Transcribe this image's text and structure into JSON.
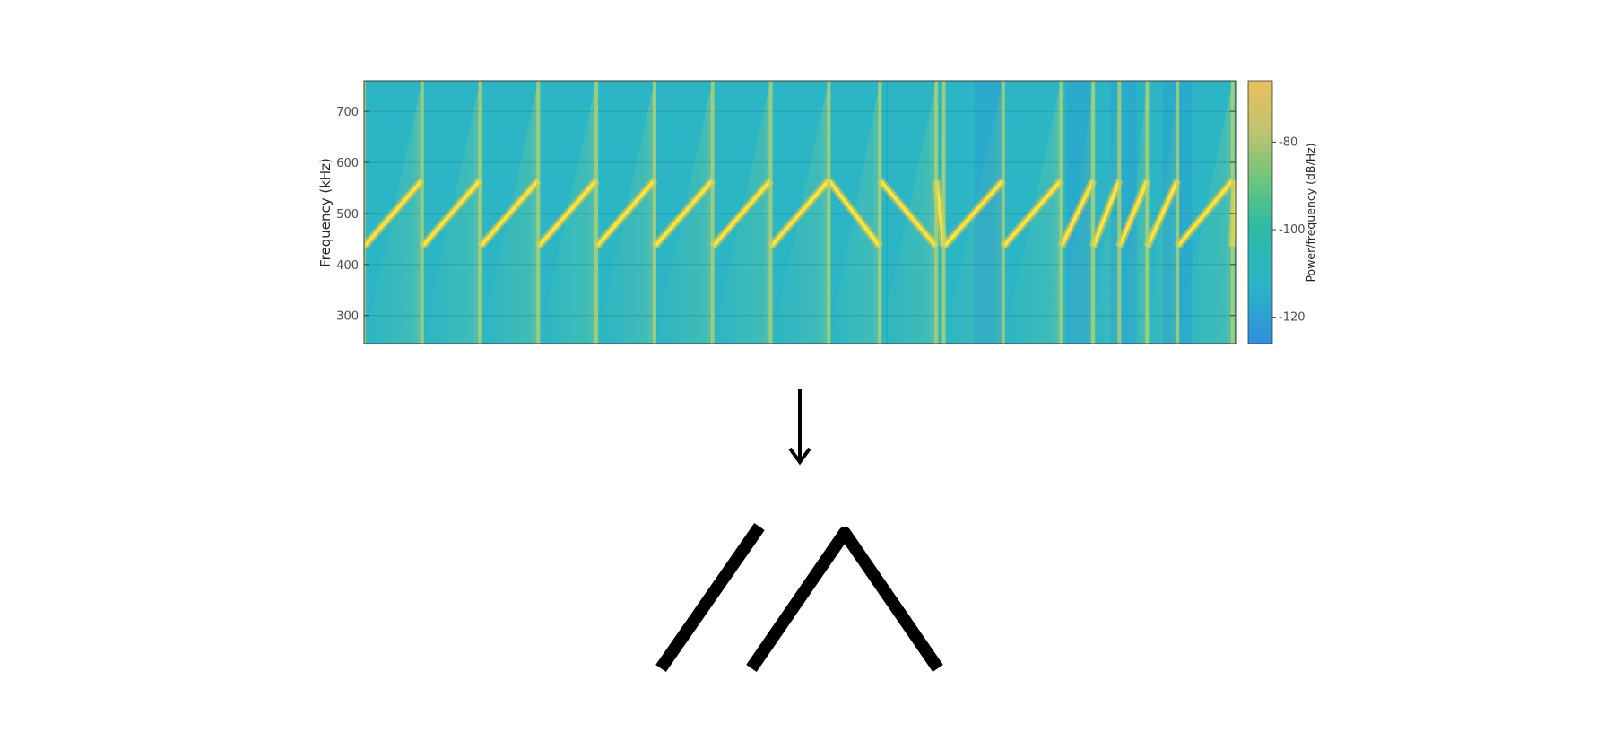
{
  "chart_data": {
    "type": "heatmap",
    "title": "",
    "xlabel": "",
    "ylabel": "Frequency (kHz)",
    "yticks": [
      "300",
      "400",
      "500",
      "600",
      "700"
    ],
    "ytick_values": [
      300,
      400,
      500,
      600,
      700
    ],
    "ylim": [
      245,
      760
    ],
    "grid": true,
    "colorbar": {
      "label": "Power/frequency (dB/Hz)",
      "ticks": [
        "-80",
        "-100",
        "-120"
      ],
      "tick_values": [
        -80,
        -100,
        -120
      ],
      "range": [
        -126,
        -66
      ],
      "colors": [
        "#2f8fdc",
        "#2bb5c6",
        "#2fbba4",
        "#6cc47c",
        "#c4c46e",
        "#e8c05c"
      ]
    },
    "background_color": "#2bb5c5",
    "chirp_color": "#ffe23a",
    "chirp_min_khz": 435,
    "chirp_max_khz": 565,
    "chirps": [
      {
        "kind": "up",
        "start": 0.0,
        "end": 1.0
      },
      {
        "kind": "up",
        "start": 1.0,
        "end": 2.0
      },
      {
        "kind": "up",
        "start": 2.0,
        "end": 3.0
      },
      {
        "kind": "up",
        "start": 3.0,
        "end": 4.0
      },
      {
        "kind": "up",
        "start": 4.0,
        "end": 5.0
      },
      {
        "kind": "up",
        "start": 5.0,
        "end": 6.0
      },
      {
        "kind": "up",
        "start": 6.0,
        "end": 7.0
      },
      {
        "kind": "up",
        "start": 7.0,
        "end": 8.0
      },
      {
        "kind": "down",
        "start": 8.0,
        "end": 8.88
      },
      {
        "kind": "down",
        "start": 8.88,
        "end": 9.85
      },
      {
        "kind": "down",
        "start": 9.85,
        "end": 9.98
      },
      {
        "kind": "up",
        "start": 9.98,
        "end": 11.0
      },
      {
        "kind": "up",
        "start": 11.0,
        "end": 12.0
      },
      {
        "kind": "up",
        "start": 12.0,
        "end": 12.55
      },
      {
        "kind": "up",
        "start": 12.55,
        "end": 13.0
      },
      {
        "kind": "up",
        "start": 13.0,
        "end": 13.48
      },
      {
        "kind": "up",
        "start": 13.48,
        "end": 14.0
      },
      {
        "kind": "up",
        "start": 14.0,
        "end": 14.95
      },
      {
        "kind": "up",
        "start": 14.95,
        "end": 15.0
      }
    ],
    "time_range": [
      0,
      15
    ],
    "legend_symbols": [
      {
        "kind": "up"
      },
      {
        "kind": "up-down"
      }
    ]
  }
}
